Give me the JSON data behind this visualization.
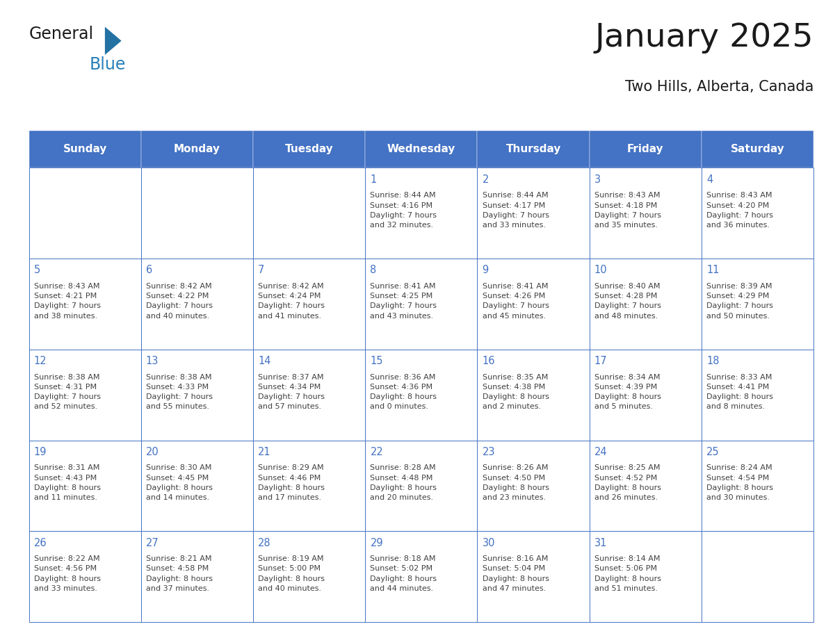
{
  "title": "January 2025",
  "subtitle": "Two Hills, Alberta, Canada",
  "days_of_week": [
    "Sunday",
    "Monday",
    "Tuesday",
    "Wednesday",
    "Thursday",
    "Friday",
    "Saturday"
  ],
  "header_bg": "#4472C4",
  "header_text": "#FFFFFF",
  "cell_bg": "#FFFFFF",
  "border_color": "#4472C4",
  "day_number_color": "#4472C4",
  "text_color": "#404040",
  "title_color": "#1a1a1a",
  "calendar_data": [
    [
      {
        "day": null,
        "sunrise": null,
        "sunset": null,
        "daylight_line1": null,
        "daylight_line2": null
      },
      {
        "day": null,
        "sunrise": null,
        "sunset": null,
        "daylight_line1": null,
        "daylight_line2": null
      },
      {
        "day": null,
        "sunrise": null,
        "sunset": null,
        "daylight_line1": null,
        "daylight_line2": null
      },
      {
        "day": 1,
        "sunrise": "8:44 AM",
        "sunset": "4:16 PM",
        "daylight_line1": "Daylight: 7 hours",
        "daylight_line2": "and 32 minutes."
      },
      {
        "day": 2,
        "sunrise": "8:44 AM",
        "sunset": "4:17 PM",
        "daylight_line1": "Daylight: 7 hours",
        "daylight_line2": "and 33 minutes."
      },
      {
        "day": 3,
        "sunrise": "8:43 AM",
        "sunset": "4:18 PM",
        "daylight_line1": "Daylight: 7 hours",
        "daylight_line2": "and 35 minutes."
      },
      {
        "day": 4,
        "sunrise": "8:43 AM",
        "sunset": "4:20 PM",
        "daylight_line1": "Daylight: 7 hours",
        "daylight_line2": "and 36 minutes."
      }
    ],
    [
      {
        "day": 5,
        "sunrise": "8:43 AM",
        "sunset": "4:21 PM",
        "daylight_line1": "Daylight: 7 hours",
        "daylight_line2": "and 38 minutes."
      },
      {
        "day": 6,
        "sunrise": "8:42 AM",
        "sunset": "4:22 PM",
        "daylight_line1": "Daylight: 7 hours",
        "daylight_line2": "and 40 minutes."
      },
      {
        "day": 7,
        "sunrise": "8:42 AM",
        "sunset": "4:24 PM",
        "daylight_line1": "Daylight: 7 hours",
        "daylight_line2": "and 41 minutes."
      },
      {
        "day": 8,
        "sunrise": "8:41 AM",
        "sunset": "4:25 PM",
        "daylight_line1": "Daylight: 7 hours",
        "daylight_line2": "and 43 minutes."
      },
      {
        "day": 9,
        "sunrise": "8:41 AM",
        "sunset": "4:26 PM",
        "daylight_line1": "Daylight: 7 hours",
        "daylight_line2": "and 45 minutes."
      },
      {
        "day": 10,
        "sunrise": "8:40 AM",
        "sunset": "4:28 PM",
        "daylight_line1": "Daylight: 7 hours",
        "daylight_line2": "and 48 minutes."
      },
      {
        "day": 11,
        "sunrise": "8:39 AM",
        "sunset": "4:29 PM",
        "daylight_line1": "Daylight: 7 hours",
        "daylight_line2": "and 50 minutes."
      }
    ],
    [
      {
        "day": 12,
        "sunrise": "8:38 AM",
        "sunset": "4:31 PM",
        "daylight_line1": "Daylight: 7 hours",
        "daylight_line2": "and 52 minutes."
      },
      {
        "day": 13,
        "sunrise": "8:38 AM",
        "sunset": "4:33 PM",
        "daylight_line1": "Daylight: 7 hours",
        "daylight_line2": "and 55 minutes."
      },
      {
        "day": 14,
        "sunrise": "8:37 AM",
        "sunset": "4:34 PM",
        "daylight_line1": "Daylight: 7 hours",
        "daylight_line2": "and 57 minutes."
      },
      {
        "day": 15,
        "sunrise": "8:36 AM",
        "sunset": "4:36 PM",
        "daylight_line1": "Daylight: 8 hours",
        "daylight_line2": "and 0 minutes."
      },
      {
        "day": 16,
        "sunrise": "8:35 AM",
        "sunset": "4:38 PM",
        "daylight_line1": "Daylight: 8 hours",
        "daylight_line2": "and 2 minutes."
      },
      {
        "day": 17,
        "sunrise": "8:34 AM",
        "sunset": "4:39 PM",
        "daylight_line1": "Daylight: 8 hours",
        "daylight_line2": "and 5 minutes."
      },
      {
        "day": 18,
        "sunrise": "8:33 AM",
        "sunset": "4:41 PM",
        "daylight_line1": "Daylight: 8 hours",
        "daylight_line2": "and 8 minutes."
      }
    ],
    [
      {
        "day": 19,
        "sunrise": "8:31 AM",
        "sunset": "4:43 PM",
        "daylight_line1": "Daylight: 8 hours",
        "daylight_line2": "and 11 minutes."
      },
      {
        "day": 20,
        "sunrise": "8:30 AM",
        "sunset": "4:45 PM",
        "daylight_line1": "Daylight: 8 hours",
        "daylight_line2": "and 14 minutes."
      },
      {
        "day": 21,
        "sunrise": "8:29 AM",
        "sunset": "4:46 PM",
        "daylight_line1": "Daylight: 8 hours",
        "daylight_line2": "and 17 minutes."
      },
      {
        "day": 22,
        "sunrise": "8:28 AM",
        "sunset": "4:48 PM",
        "daylight_line1": "Daylight: 8 hours",
        "daylight_line2": "and 20 minutes."
      },
      {
        "day": 23,
        "sunrise": "8:26 AM",
        "sunset": "4:50 PM",
        "daylight_line1": "Daylight: 8 hours",
        "daylight_line2": "and 23 minutes."
      },
      {
        "day": 24,
        "sunrise": "8:25 AM",
        "sunset": "4:52 PM",
        "daylight_line1": "Daylight: 8 hours",
        "daylight_line2": "and 26 minutes."
      },
      {
        "day": 25,
        "sunrise": "8:24 AM",
        "sunset": "4:54 PM",
        "daylight_line1": "Daylight: 8 hours",
        "daylight_line2": "and 30 minutes."
      }
    ],
    [
      {
        "day": 26,
        "sunrise": "8:22 AM",
        "sunset": "4:56 PM",
        "daylight_line1": "Daylight: 8 hours",
        "daylight_line2": "and 33 minutes."
      },
      {
        "day": 27,
        "sunrise": "8:21 AM",
        "sunset": "4:58 PM",
        "daylight_line1": "Daylight: 8 hours",
        "daylight_line2": "and 37 minutes."
      },
      {
        "day": 28,
        "sunrise": "8:19 AM",
        "sunset": "5:00 PM",
        "daylight_line1": "Daylight: 8 hours",
        "daylight_line2": "and 40 minutes."
      },
      {
        "day": 29,
        "sunrise": "8:18 AM",
        "sunset": "5:02 PM",
        "daylight_line1": "Daylight: 8 hours",
        "daylight_line2": "and 44 minutes."
      },
      {
        "day": 30,
        "sunrise": "8:16 AM",
        "sunset": "5:04 PM",
        "daylight_line1": "Daylight: 8 hours",
        "daylight_line2": "and 47 minutes."
      },
      {
        "day": 31,
        "sunrise": "8:14 AM",
        "sunset": "5:06 PM",
        "daylight_line1": "Daylight: 8 hours",
        "daylight_line2": "and 51 minutes."
      },
      {
        "day": null,
        "sunrise": null,
        "sunset": null,
        "daylight_line1": null,
        "daylight_line2": null
      }
    ]
  ],
  "logo_general_color": "#1a1a1a",
  "logo_blue_color": "#2980B9",
  "logo_triangle_color": "#2471A3"
}
